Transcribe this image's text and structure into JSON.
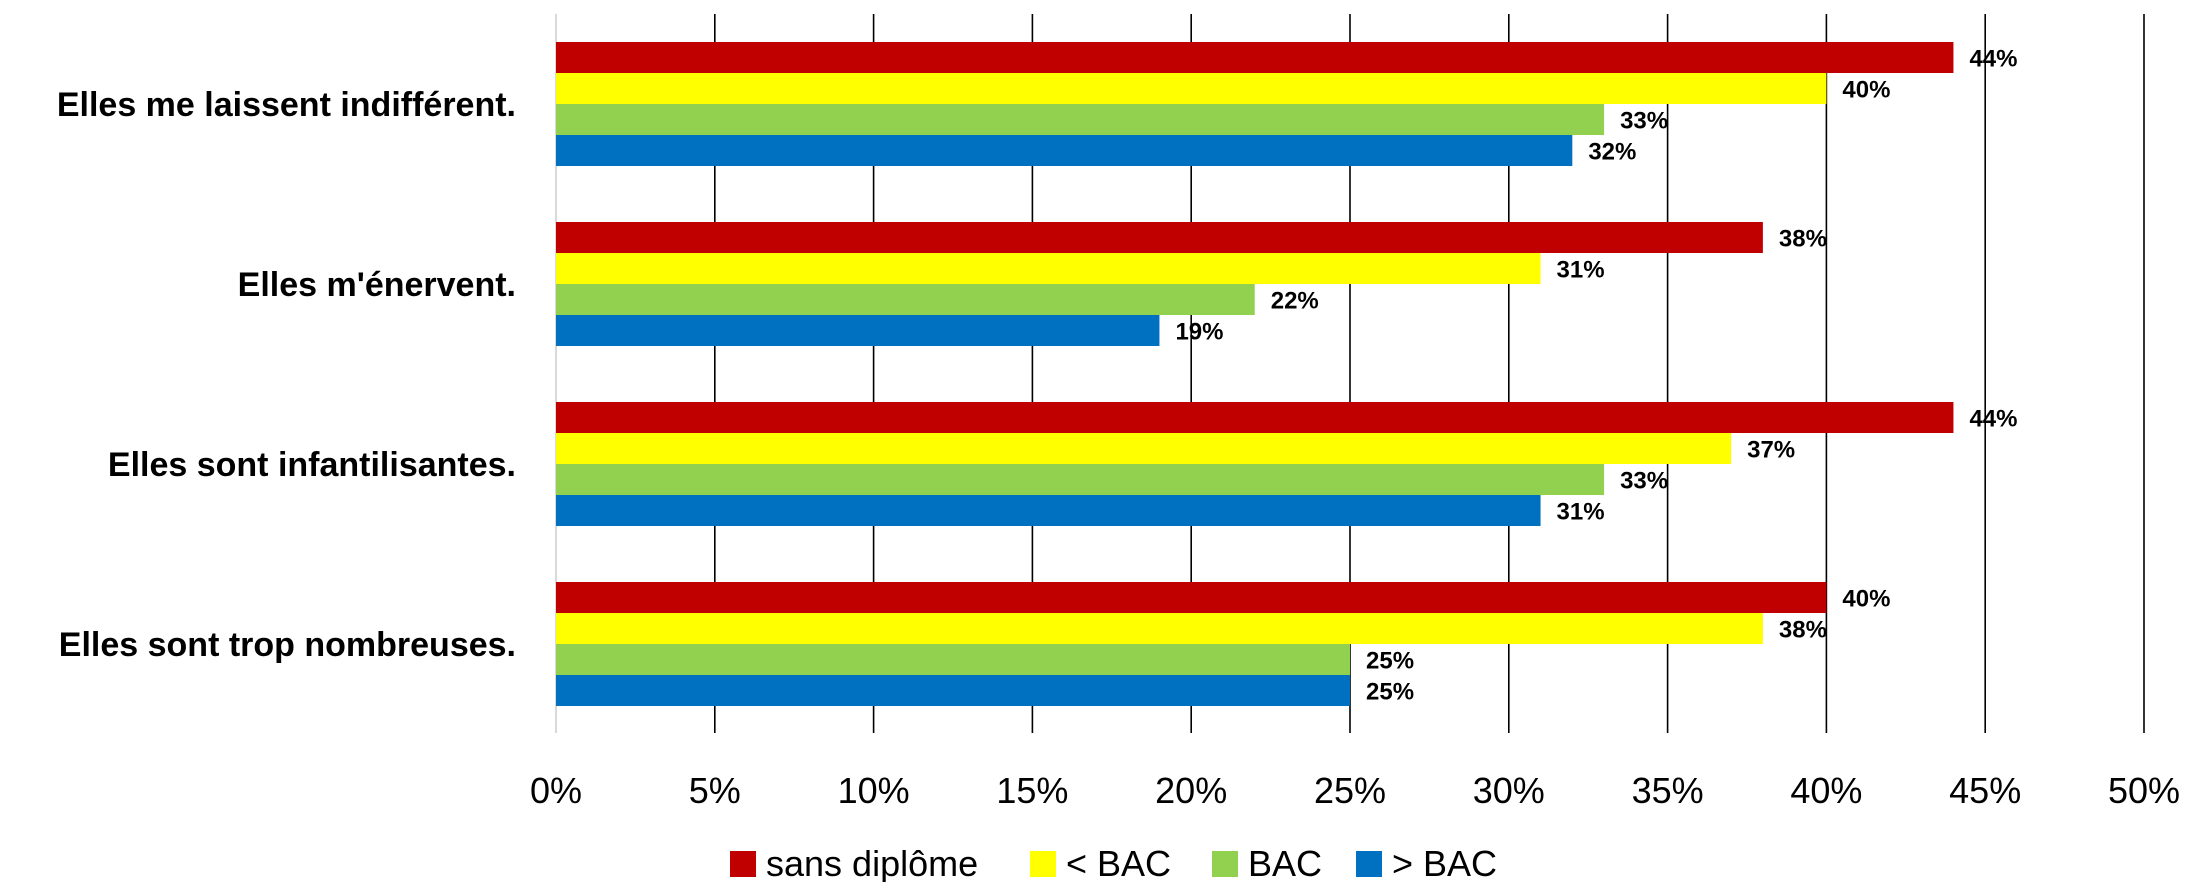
{
  "chart_data": {
    "type": "bar",
    "orientation": "horizontal",
    "categories": [
      "Elles me laissent indifférent.",
      "Elles m'énervent.",
      "Elles sont infantilisantes.",
      "Elles sont trop nombreuses."
    ],
    "series": [
      {
        "name": "sans diplôme",
        "color": "#C00000",
        "values": [
          44,
          38,
          44,
          40
        ],
        "labels": [
          "44%",
          "38%",
          "44%",
          "40%"
        ]
      },
      {
        "name": "< BAC",
        "color": "#FFFF00",
        "values": [
          40,
          31,
          37,
          38
        ],
        "labels": [
          "40%",
          "31%",
          "37%",
          "38%"
        ]
      },
      {
        "name": "BAC",
        "color": "#92D050",
        "values": [
          33,
          22,
          33,
          25
        ],
        "labels": [
          "33%",
          "22%",
          "33%",
          "25%"
        ]
      },
      {
        "name": "> BAC",
        "color": "#0070C0",
        "values": [
          32,
          19,
          31,
          25
        ],
        "labels": [
          "32%",
          "19%",
          "31%",
          "25%"
        ]
      }
    ],
    "xlim": [
      0,
      50
    ],
    "xticks": [
      0,
      5,
      10,
      15,
      20,
      25,
      30,
      35,
      40,
      45,
      50
    ],
    "xtick_labels": [
      "0%",
      "5%",
      "10%",
      "15%",
      "20%",
      "25%",
      "30%",
      "35%",
      "40%",
      "45%",
      "50%"
    ],
    "grid": "vertical",
    "legend": "bottom",
    "title": "",
    "xlabel": "",
    "ylabel": ""
  }
}
